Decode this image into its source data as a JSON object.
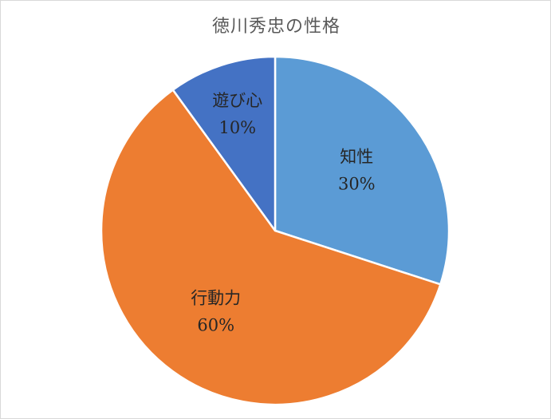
{
  "chart_data": {
    "type": "pie",
    "title": "徳川秀忠の性格",
    "categories": [
      "知性",
      "行動力",
      "遊び心"
    ],
    "values": [
      30,
      60,
      10
    ],
    "value_labels": [
      "30%",
      "60%",
      "10%"
    ],
    "colors": [
      "#5b9bd5",
      "#ed7d31",
      "#4472c4"
    ],
    "start_angle_deg": 0,
    "direction": "clockwise",
    "legend": "none"
  }
}
